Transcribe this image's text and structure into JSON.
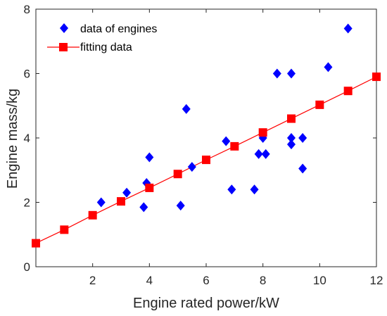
{
  "chart_data": {
    "type": "scatter",
    "title": "",
    "xlabel": "Engine rated power/kW",
    "ylabel": "Engine mass/kg",
    "xlim": [
      0,
      12
    ],
    "ylim": [
      0,
      8
    ],
    "xticks": [
      "2",
      "4",
      "6",
      "8",
      "10",
      "12"
    ],
    "yticks": [
      "0",
      "2",
      "4",
      "6",
      "8"
    ],
    "grid": false,
    "legend_position": "top-left",
    "series": [
      {
        "name": "data of engines",
        "type": "scatter",
        "marker": "diamond",
        "color": "#0000ff",
        "points": [
          [
            2.3,
            2.0
          ],
          [
            3.2,
            2.3
          ],
          [
            3.8,
            1.85
          ],
          [
            3.9,
            2.6
          ],
          [
            4.0,
            3.4
          ],
          [
            5.1,
            1.9
          ],
          [
            5.3,
            4.9
          ],
          [
            5.5,
            3.1
          ],
          [
            6.7,
            3.9
          ],
          [
            6.9,
            2.4
          ],
          [
            7.7,
            2.4
          ],
          [
            7.85,
            3.5
          ],
          [
            8.0,
            4.0
          ],
          [
            8.1,
            3.5
          ],
          [
            8.5,
            6.0
          ],
          [
            9.0,
            6.0
          ],
          [
            9.0,
            3.8
          ],
          [
            9.0,
            4.0
          ],
          [
            9.4,
            4.0
          ],
          [
            9.4,
            3.05
          ],
          [
            10.3,
            6.2
          ],
          [
            11.0,
            7.4
          ]
        ]
      },
      {
        "name": "fitting data",
        "type": "line",
        "marker": "square",
        "color": "#ff0000",
        "points": [
          [
            0,
            0.73
          ],
          [
            1,
            1.15
          ],
          [
            2,
            1.6
          ],
          [
            3,
            2.03
          ],
          [
            4,
            2.45
          ],
          [
            5,
            2.88
          ],
          [
            6,
            3.32
          ],
          [
            7,
            3.74
          ],
          [
            8,
            4.17
          ],
          [
            9,
            4.6
          ],
          [
            10,
            5.03
          ],
          [
            11,
            5.46
          ],
          [
            12,
            5.9
          ]
        ]
      }
    ]
  }
}
